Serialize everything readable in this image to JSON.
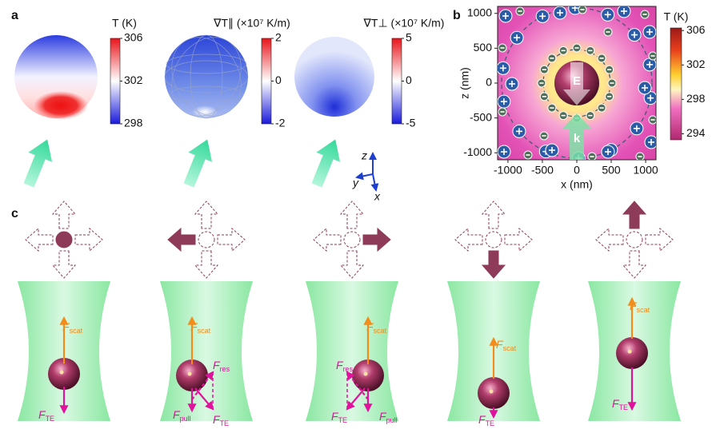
{
  "figure": {
    "panel_a": {
      "label": "a",
      "maps": [
        {
          "title": "T (K)",
          "lim": [
            298,
            306
          ],
          "ticks": [
            306,
            302,
            298
          ]
        },
        {
          "title": "∇T∥ (×10⁷ K/m)",
          "lim": [
            -2,
            2
          ],
          "ticks": [
            2,
            0,
            -2
          ]
        },
        {
          "title": "∇T⊥ (×10⁷ K/m)",
          "lim": [
            -5,
            5
          ],
          "ticks": [
            5,
            0,
            -5
          ]
        }
      ],
      "axes": [
        "z",
        "y",
        "x"
      ]
    },
    "panel_b": {
      "label": "b",
      "xlabel": "x (nm)",
      "ylabel": "z (nm)",
      "xlim": [
        -1150,
        1150
      ],
      "ylim": [
        -1100,
        1100
      ],
      "xticks": [
        -1000,
        -500,
        0,
        500,
        1000
      ],
      "yticks": [
        1000,
        500,
        0,
        -500,
        -1000
      ],
      "colorbar": {
        "title": "T (K)",
        "lim": [
          293.3,
          306.3
        ],
        "ticks": [
          306,
          302,
          298,
          294
        ]
      },
      "field_label": "E",
      "wave_label": "k"
    },
    "panel_c": {
      "label": "c",
      "columns": [
        {
          "forces": [
            {
              "symbol": "F",
              "sub": "scat"
            },
            {
              "symbol": "F",
              "sub": "TE"
            }
          ]
        },
        {
          "forces": [
            {
              "symbol": "F",
              "sub": "scat"
            },
            {
              "symbol": "F",
              "sub": "res"
            },
            {
              "symbol": "F",
              "sub": "pull"
            },
            {
              "symbol": "F",
              "sub": "TE"
            }
          ]
        },
        {
          "forces": [
            {
              "symbol": "F",
              "sub": "scat"
            },
            {
              "symbol": "F",
              "sub": "res"
            },
            {
              "symbol": "F",
              "sub": "TE"
            },
            {
              "symbol": "F",
              "sub": "pull"
            }
          ]
        },
        {
          "forces": [
            {
              "symbol": "F",
              "sub": "scat"
            },
            {
              "symbol": "F",
              "sub": "TE"
            }
          ]
        },
        {
          "forces": [
            {
              "symbol": "F",
              "sub": "scat"
            },
            {
              "symbol": "F",
              "sub": "TE"
            }
          ]
        }
      ]
    }
  }
}
